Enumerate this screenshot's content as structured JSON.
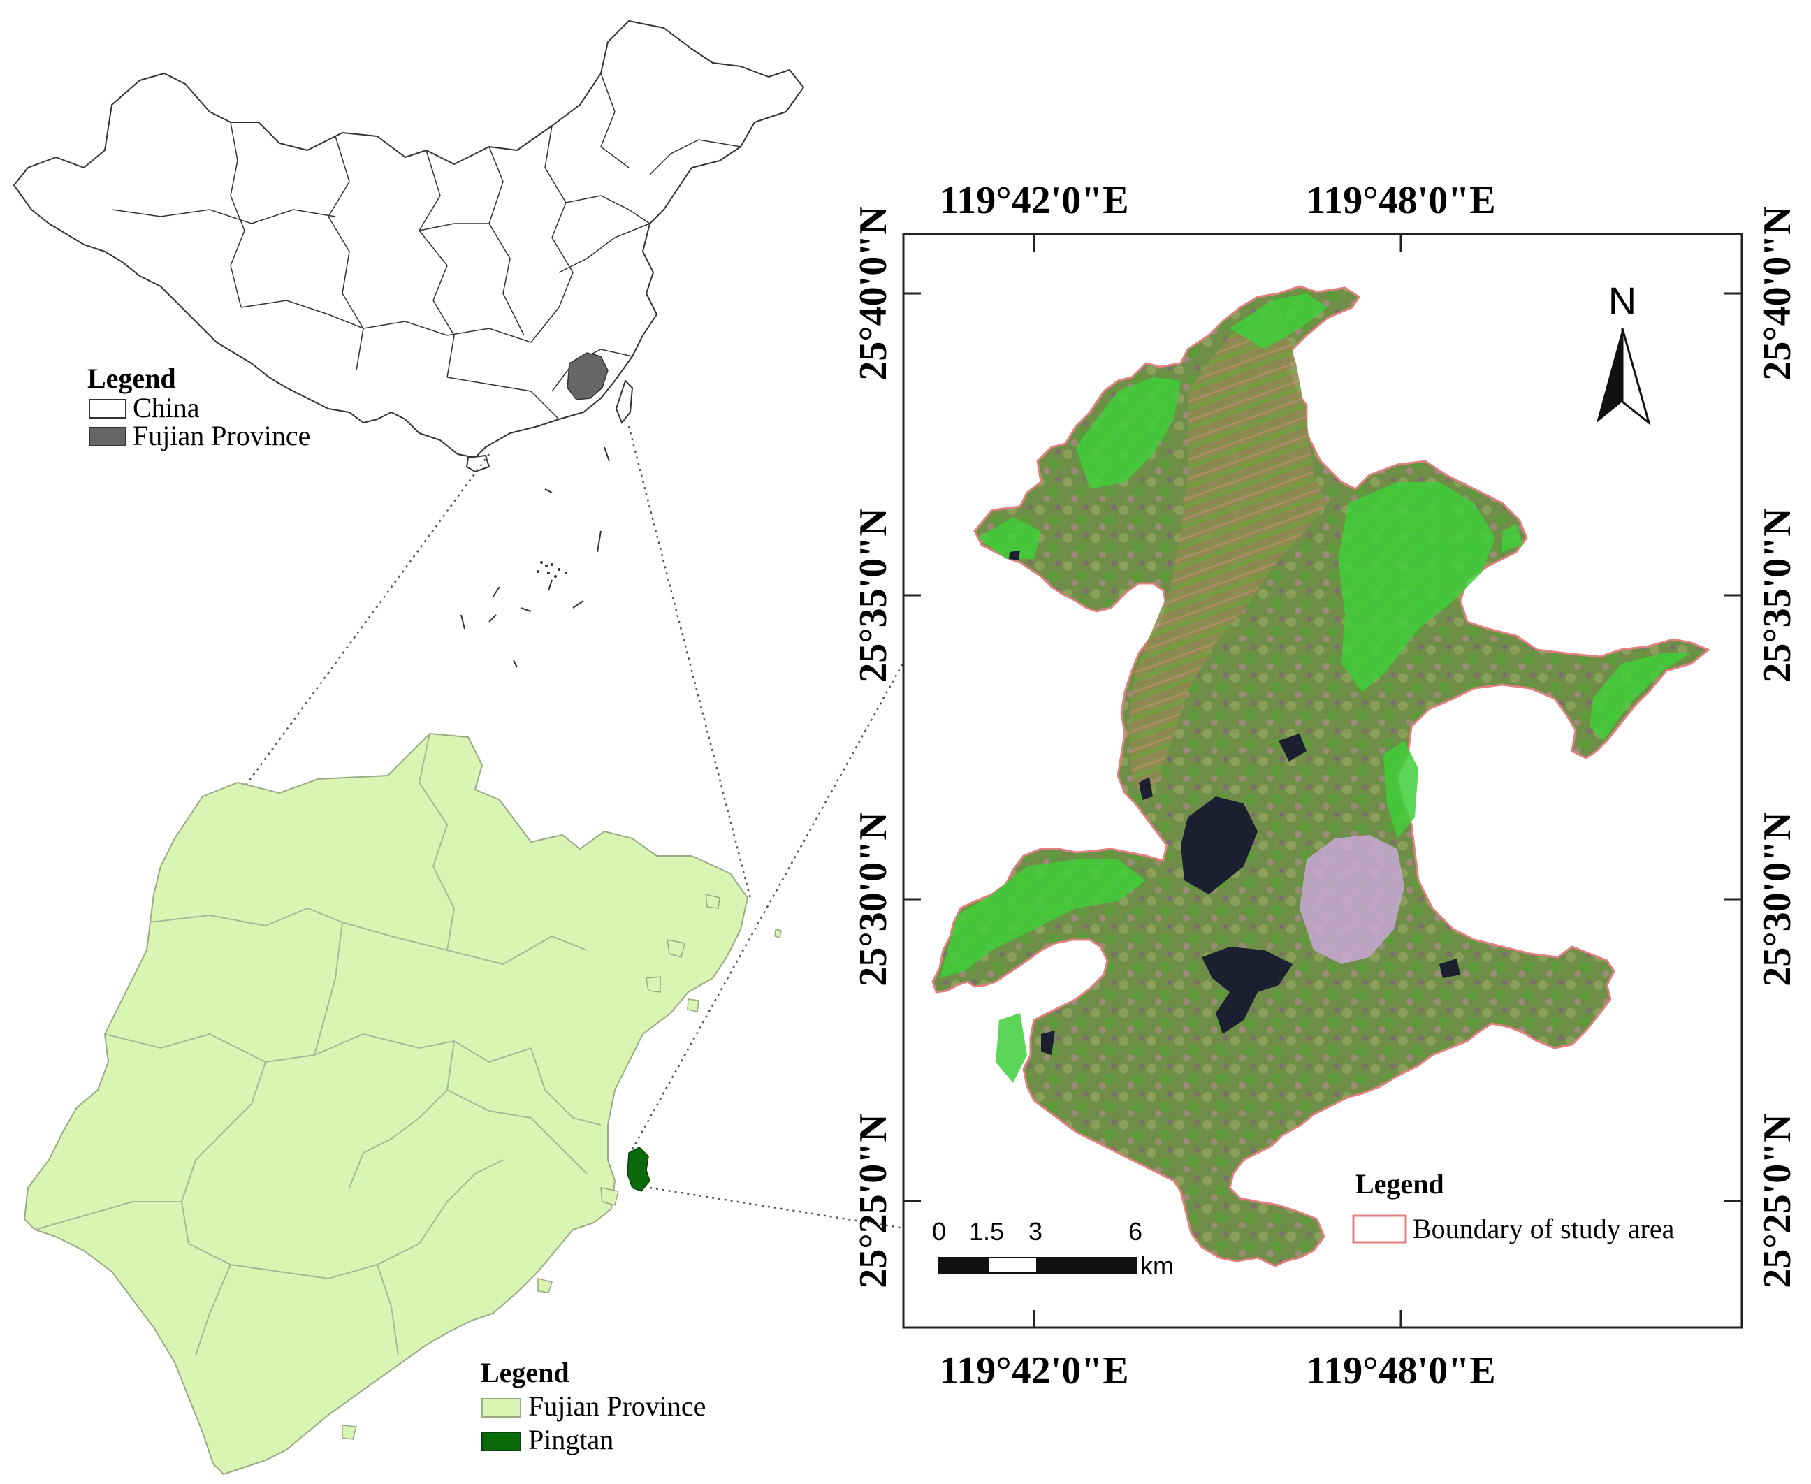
{
  "china_map": {
    "legend": {
      "title": "Legend",
      "items": [
        {
          "label": "China",
          "fill": "#ffffff"
        },
        {
          "label": "Fujian Province",
          "fill": "#666666"
        }
      ]
    }
  },
  "fujian_map": {
    "legend": {
      "title": "Legend",
      "items": [
        {
          "label": "Fujian Province",
          "fill": "#d9f5b3"
        },
        {
          "label": "Pingtan",
          "fill": "#0b6b0b"
        }
      ]
    }
  },
  "study_area_map": {
    "top_ticks": [
      "119°42'0\"E",
      "119°48'0\"E"
    ],
    "bottom_ticks": [
      "119°42'0\"E",
      "119°48'0\"E"
    ],
    "left_ticks": [
      "25°40'0\"N",
      "25°35'0\"N",
      "25°30'0\"N",
      "25°25'0\"N"
    ],
    "right_ticks": [
      "25°40'0\"N",
      "25°35'0\"N",
      "25°30'0\"N",
      "25°25'0\"N"
    ],
    "north_label": "N",
    "scale_bar": {
      "labels": [
        "0",
        "1.5",
        "3",
        "6"
      ],
      "unit": "km"
    },
    "legend": {
      "title": "Legend",
      "items": [
        {
          "label": "Boundary of study area",
          "stroke": "#e08080"
        }
      ]
    }
  },
  "colors": {
    "vegetation_bright": "#3fcf3a",
    "vegetation_mid": "#7a9a4a",
    "urban": "#c9a8d6",
    "water_dark": "#1b1f30"
  }
}
